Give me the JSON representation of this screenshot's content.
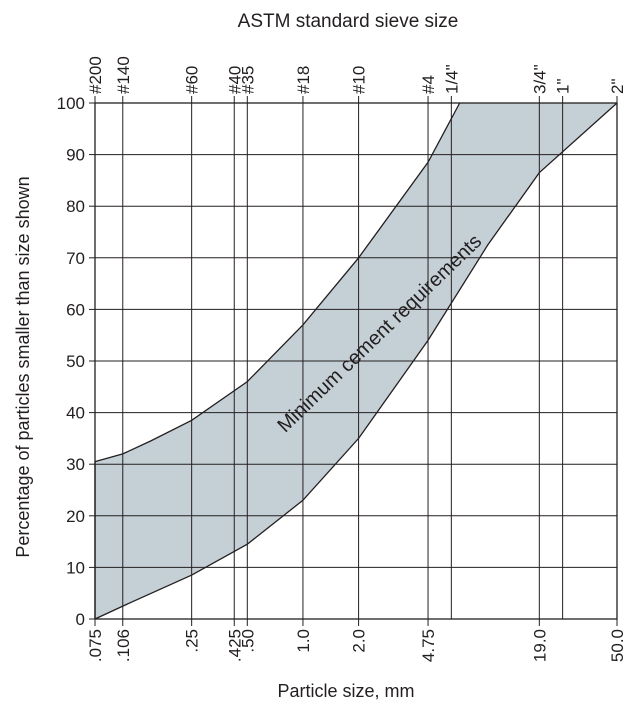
{
  "chart_data": {
    "type": "area",
    "title": "ASTM standard sieve size",
    "xlabel": "Particle size, mm",
    "ylabel": "Percentage of particles smaller than size shown",
    "x_scale": "log",
    "xlim": [
      0.075,
      50.0
    ],
    "ylim": [
      0,
      100
    ],
    "grid": true,
    "yticks": [
      0,
      10,
      20,
      30,
      40,
      50,
      60,
      70,
      80,
      90,
      100
    ],
    "bottom_ticks": [
      {
        "value": 0.075,
        "label": ".075"
      },
      {
        "value": 0.106,
        "label": ".106"
      },
      {
        "value": 0.25,
        "label": ".25"
      },
      {
        "value": 0.425,
        "label": ".425"
      },
      {
        "value": 0.5,
        "label": ".50"
      },
      {
        "value": 1.0,
        "label": "1.0"
      },
      {
        "value": 2.0,
        "label": "2.0"
      },
      {
        "value": 4.75,
        "label": "4.75"
      },
      {
        "value": 19.0,
        "label": "19.0"
      },
      {
        "value": 50.0,
        "label": "50.0"
      }
    ],
    "top_ticks": [
      {
        "value": 0.075,
        "label": "#200"
      },
      {
        "value": 0.106,
        "label": "#140"
      },
      {
        "value": 0.25,
        "label": "#60"
      },
      {
        "value": 0.425,
        "label": "#40"
      },
      {
        "value": 0.5,
        "label": "#35"
      },
      {
        "value": 1.0,
        "label": "#18"
      },
      {
        "value": 2.0,
        "label": "#10"
      },
      {
        "value": 4.75,
        "label": "#4"
      },
      {
        "value": 6.35,
        "label": "1/4\""
      },
      {
        "value": 19.0,
        "label": "3/4\""
      },
      {
        "value": 25.4,
        "label": "1\""
      },
      {
        "value": 50.0,
        "label": "2\""
      }
    ],
    "band_upper": {
      "x": [
        0.075,
        0.106,
        0.15,
        0.25,
        0.5,
        1.0,
        2.0,
        4.75,
        7.05
      ],
      "y": [
        30.5,
        32,
        34.5,
        38.5,
        46,
        57,
        70,
        88.5,
        100
      ]
    },
    "band_lower": {
      "x": [
        0.075,
        0.106,
        0.25,
        0.5,
        1.0,
        2.0,
        4.75,
        10.0,
        19.0,
        50.0
      ],
      "y": [
        0,
        2.5,
        8.5,
        14.5,
        23,
        35,
        54,
        72.5,
        86.5,
        100
      ]
    },
    "annotation": "Minimum cement requirements",
    "colors": {
      "band": "#c5d0d6",
      "line": "#231f20"
    }
  }
}
